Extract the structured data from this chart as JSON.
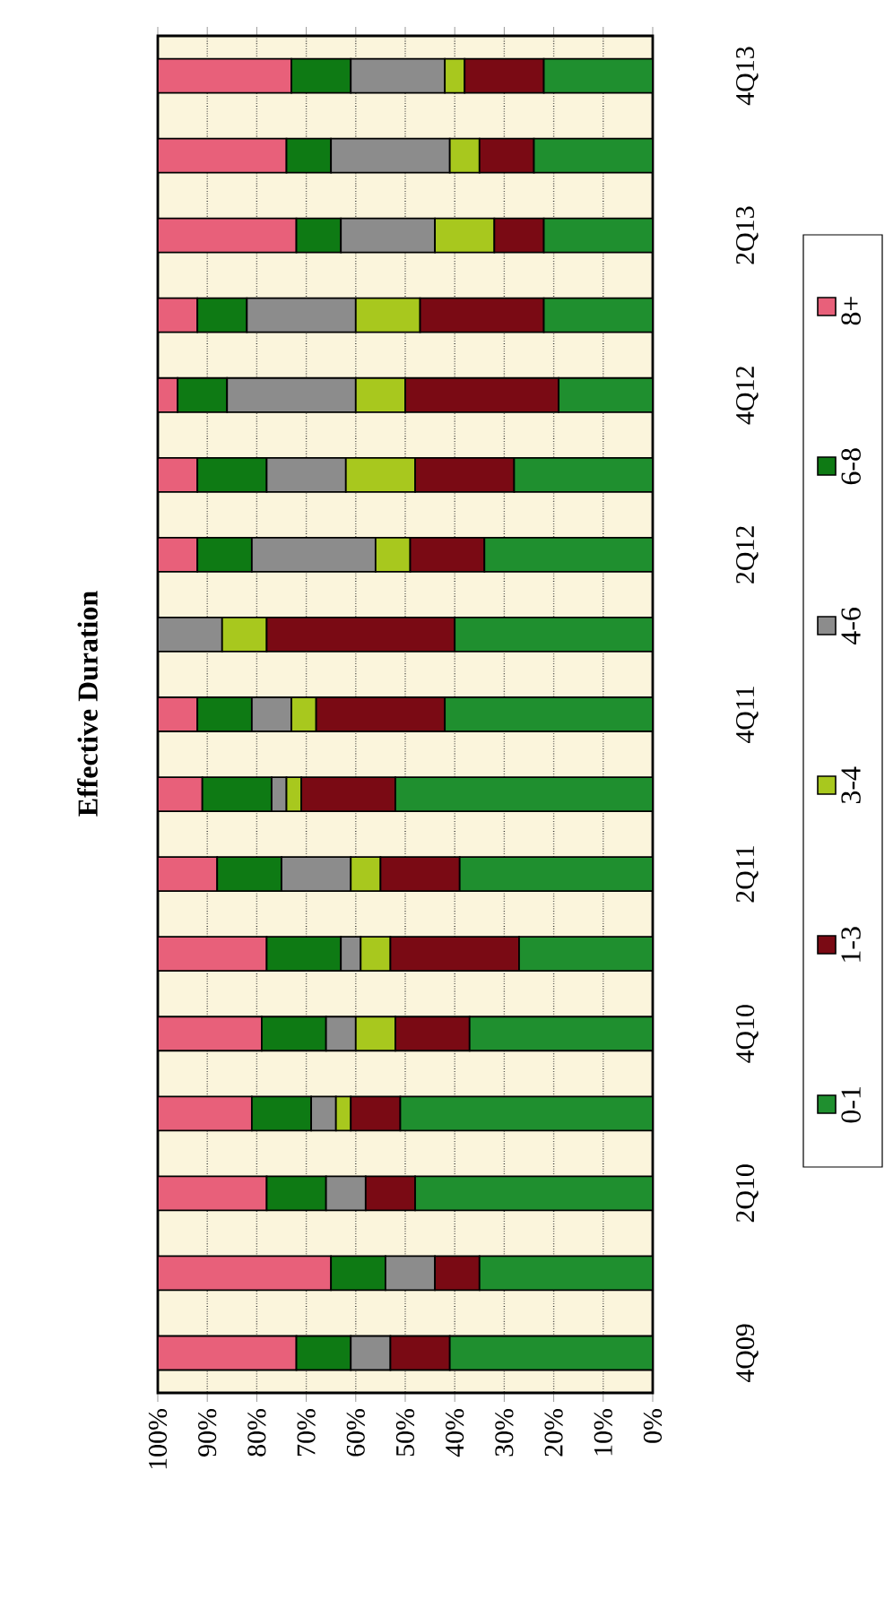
{
  "chart_data": {
    "type": "bar",
    "stacked": true,
    "orientation": "horizontal",
    "title": "Effective Duration",
    "categories": [
      "4Q13",
      null,
      "2Q13",
      null,
      "4Q12",
      null,
      "2Q12",
      null,
      "4Q11",
      null,
      "2Q11",
      null,
      "4Q10",
      null,
      "2Q10",
      null,
      "4Q09"
    ],
    "series": [
      {
        "name": "0-1",
        "color": "#1f8f2f",
        "values": [
          22,
          24,
          22,
          22,
          19,
          28,
          34,
          40,
          42,
          52,
          39,
          27,
          37,
          51,
          48,
          35,
          41
        ]
      },
      {
        "name": "1-3",
        "color": "#7a0a14",
        "values": [
          16,
          11,
          10,
          25,
          31,
          20,
          15,
          38,
          26,
          19,
          16,
          26,
          15,
          10,
          10,
          9,
          12
        ]
      },
      {
        "name": "3-4",
        "color": "#a8c81e",
        "values": [
          4,
          6,
          12,
          13,
          10,
          14,
          7,
          9,
          5,
          3,
          6,
          6,
          8,
          3,
          0,
          0,
          0
        ]
      },
      {
        "name": "4-6",
        "color": "#8c8c8c",
        "values": [
          19,
          24,
          19,
          22,
          26,
          16,
          25,
          13,
          8,
          3,
          14,
          4,
          6,
          5,
          8,
          10,
          8
        ]
      },
      {
        "name": "6-8",
        "color": "#0e7a14",
        "values": [
          12,
          9,
          9,
          10,
          10,
          14,
          11,
          0,
          11,
          14,
          13,
          15,
          13,
          12,
          12,
          11,
          11
        ]
      },
      {
        "name": "8+",
        "color": "#e8607a",
        "values": [
          27,
          26,
          28,
          8,
          4,
          8,
          8,
          0,
          8,
          9,
          12,
          22,
          21,
          19,
          22,
          35,
          28
        ]
      }
    ],
    "xlim": [
      100,
      0
    ],
    "xticks": [
      {
        "value": 100,
        "label": "100%"
      },
      {
        "value": 90,
        "label": "90%"
      },
      {
        "value": 80,
        "label": "80%"
      },
      {
        "value": 70,
        "label": "70%"
      },
      {
        "value": 60,
        "label": "60%"
      },
      {
        "value": 50,
        "label": "50%"
      },
      {
        "value": 40,
        "label": "40%"
      },
      {
        "value": 30,
        "label": "30%"
      },
      {
        "value": 20,
        "label": "20%"
      },
      {
        "value": 10,
        "label": "10%"
      },
      {
        "value": 0,
        "label": "0%"
      }
    ],
    "grid": "x",
    "legend": "right"
  }
}
